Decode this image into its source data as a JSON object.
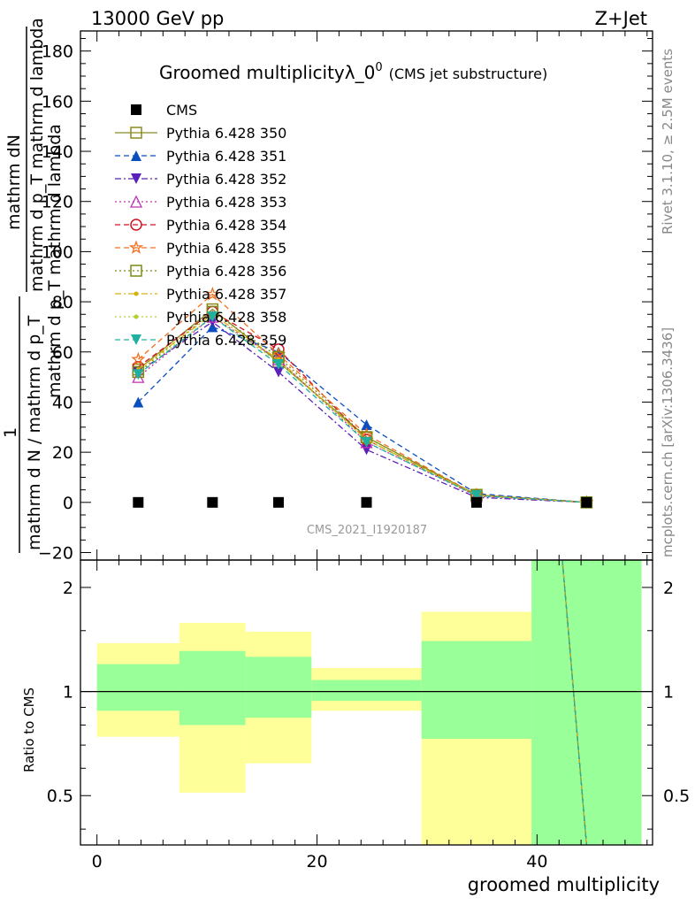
{
  "header": {
    "left": "13000 GeV pp",
    "right": "Z+Jet"
  },
  "title": {
    "main": "Groomed multiplicityλ_0",
    "sup": "0",
    "sub": "(CMS jet substructure)"
  },
  "side_labels": {
    "rivet": "Rivet 3.1.10, ≥ 2.5M events",
    "mcplots": "mcplots.cern.ch [arXiv:1306.3436]"
  },
  "watermark": "CMS_2021_I1920187",
  "axis_labels": {
    "y_main_numerator": "mathrm dN",
    "y_main_numerator_2": "mathrm d p_T mathrm d lambda",
    "y_main_one": "1",
    "y_main_denominator": "mathrm d N / mathrm d p_T",
    "y_main_denominator_2": "mathrm d p_T mathrm d lambda",
    "y_ratio": "Ratio to CMS",
    "x": "groomed multiplicity"
  },
  "chart_data": {
    "type": "line",
    "x": [
      3.75,
      10.5,
      16.5,
      24.5,
      34.5,
      44.5
    ],
    "x_bins": [
      [
        0,
        7.5
      ],
      [
        7.5,
        13.5
      ],
      [
        13.5,
        19.5
      ],
      [
        19.5,
        29.5
      ],
      [
        29.5,
        39.5
      ],
      [
        39.5,
        49.5
      ]
    ],
    "xlim": [
      -1.5,
      50.5
    ],
    "ylim": [
      -23,
      188
    ],
    "yticks": [
      -20,
      0,
      20,
      40,
      60,
      80,
      100,
      120,
      140,
      160,
      180
    ],
    "xticks": [
      0,
      20,
      40
    ],
    "ratio_ylim": [
      0.36,
      2.4
    ],
    "ratio_yticks": [
      0.5,
      1,
      2
    ],
    "data": {
      "name": "CMS",
      "values": [
        0,
        0,
        0,
        0,
        0,
        0
      ],
      "color": "#000000"
    },
    "series": [
      {
        "name": "Pythia 6.428 350",
        "color": "#8a8a20",
        "marker": "square-open",
        "dash": "solid",
        "values": [
          53,
          77,
          56,
          26,
          3,
          0
        ]
      },
      {
        "name": "Pythia 6.428 351",
        "color": "#0b4fbf",
        "marker": "triangle-up",
        "dash": "dashed",
        "values": [
          40,
          70,
          60,
          31,
          3.5,
          0
        ]
      },
      {
        "name": "Pythia 6.428 352",
        "color": "#5a20b8",
        "marker": "triangle-down",
        "dash": "dashdot",
        "values": [
          52,
          72,
          52,
          21,
          2,
          0
        ]
      },
      {
        "name": "Pythia 6.428 353",
        "color": "#c030b0",
        "marker": "triangle-up-open",
        "dash": "dotted",
        "values": [
          50,
          74,
          57,
          24,
          2.5,
          0
        ]
      },
      {
        "name": "Pythia 6.428 354",
        "color": "#d01020",
        "marker": "circle-open",
        "dash": "dashed",
        "values": [
          54,
          76,
          61,
          25,
          2.8,
          0
        ]
      },
      {
        "name": "Pythia 6.428 355",
        "color": "#f07020",
        "marker": "star-open",
        "dash": "dashed",
        "values": [
          57,
          83,
          59,
          27,
          3,
          0
        ]
      },
      {
        "name": "Pythia 6.428 356",
        "color": "#7a8a10",
        "marker": "square-open",
        "dash": "dotted",
        "values": [
          52,
          76,
          58,
          26,
          3,
          0
        ]
      },
      {
        "name": "Pythia 6.428 357",
        "color": "#d8b010",
        "marker": "dot",
        "dash": "dashdot",
        "values": [
          53,
          75,
          57,
          25,
          2.9,
          0
        ]
      },
      {
        "name": "Pythia 6.428 358",
        "color": "#b0d030",
        "marker": "dot",
        "dash": "dotted",
        "values": [
          52,
          74,
          56,
          25,
          2.8,
          0
        ]
      },
      {
        "name": "Pythia 6.428 359",
        "color": "#20b0a0",
        "marker": "triangle-down",
        "dash": "dashed",
        "values": [
          51,
          74,
          55,
          24,
          2.7,
          0
        ]
      }
    ],
    "ratio_bands": {
      "yellow": [
        [
          0.74,
          1.38
        ],
        [
          0.51,
          1.58
        ],
        [
          0.62,
          1.49
        ],
        [
          0.88,
          1.17
        ],
        [
          0.0,
          1.7
        ],
        [
          0.0,
          2.4
        ]
      ],
      "green": [
        [
          0.88,
          1.2
        ],
        [
          0.8,
          1.31
        ],
        [
          0.84,
          1.26
        ],
        [
          0.94,
          1.08
        ],
        [
          0.73,
          1.4
        ],
        [
          0.0,
          2.4
        ]
      ]
    },
    "ratio_line": {
      "x": [
        42.3,
        44.5
      ],
      "y": [
        2.4,
        0.36
      ]
    }
  }
}
